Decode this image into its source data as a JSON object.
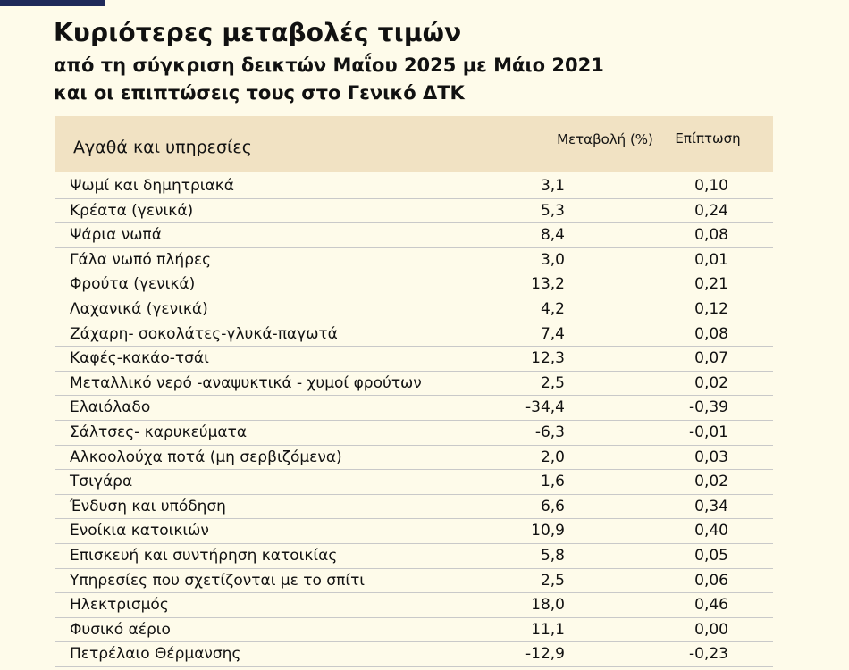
{
  "header": {
    "title": "Κυριότερες μεταβολές τιμών",
    "subtitle": [
      "από τη σύγκριση δεικτών Μαΐου 2025 με Μάιο 2021",
      "και οι επιπτώσεις τους στο Γενικό ΔΤΚ"
    ]
  },
  "table": {
    "columns": [
      "Αγαθά και υπηρεσίες",
      "Μεταβολή (%)",
      "Επίπτωση"
    ],
    "rows": [
      [
        "Ψωμί και δημητριακά",
        "3,1",
        "0,10"
      ],
      [
        "Κρέατα (γενικά)",
        "5,3",
        "0,24"
      ],
      [
        "Ψάρια νωπά",
        "8,4",
        "0,08"
      ],
      [
        "Γάλα νωπό πλήρες",
        "3,0",
        "0,01"
      ],
      [
        "Φρούτα (γενικά)",
        "13,2",
        "0,21"
      ],
      [
        "Λαχανικά (γενικά)",
        "4,2",
        "0,12"
      ],
      [
        "Ζάχαρη- σοκολάτες-γλυκά-παγωτά",
        "7,4",
        "0,08"
      ],
      [
        "Καφές-κακάο-τσάι",
        "12,3",
        "0,07"
      ],
      [
        "Μεταλλικό νερό -αναψυκτικά - χυμοί φρούτων",
        "2,5",
        "0,02"
      ],
      [
        "Ελαιόλαδο",
        "-34,4",
        "-0,39"
      ],
      [
        "Σάλτσες- καρυκεύματα",
        "-6,3",
        "-0,01"
      ],
      [
        "Αλκοολούχα ποτά (μη σερβιζόμενα)",
        "2,0",
        "0,03"
      ],
      [
        "Τσιγάρα",
        "1,6",
        "0,02"
      ],
      [
        "Ένδυση και υπόδηση",
        "6,6",
        "0,34"
      ],
      [
        "Ενοίκια κατοικιών",
        "10,9",
        "0,40"
      ],
      [
        "Επισκευή και συντήρηση κατοικίας",
        "5,8",
        "0,05"
      ],
      [
        "Υπηρεσίες που σχετίζονται με το σπίτι",
        "2,5",
        "0,06"
      ],
      [
        "Ηλεκτρισμός",
        "18,0",
        "0,46"
      ],
      [
        "Φυσικό αέριο",
        "11,1",
        "0,00"
      ],
      [
        "Πετρέλαιο Θέρμανσης",
        "-12,9",
        "-0,23"
      ]
    ]
  }
}
